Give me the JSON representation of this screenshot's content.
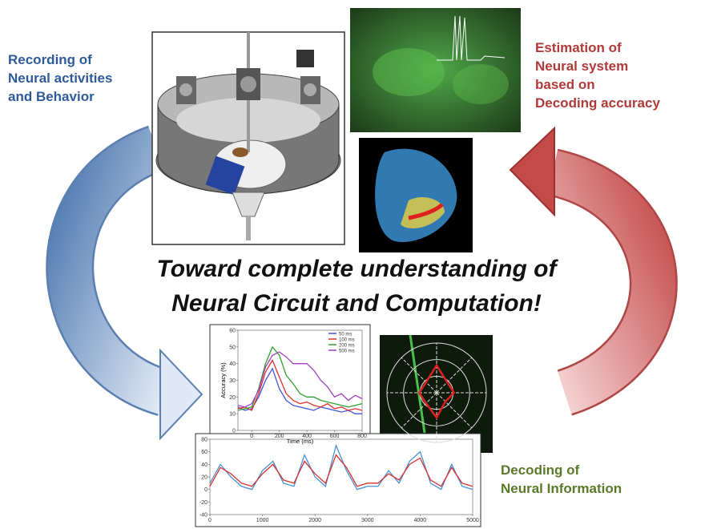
{
  "labels": {
    "recording": [
      "Recording of",
      "Neural activities",
      "and Behavior"
    ],
    "estimation": [
      "Estimation of",
      "Neural system",
      "based on",
      "Decoding accuracy"
    ],
    "headline": [
      "Toward complete understanding of",
      "Neural Circuit and Computation!"
    ],
    "decoding": [
      "Decoding of",
      "Neural Information"
    ]
  },
  "chart_data": [
    {
      "type": "line",
      "xlabel": "Time (ms)",
      "ylabel": "Accuracy (%)",
      "x": [
        -100,
        -50,
        0,
        50,
        100,
        150,
        200,
        250,
        300,
        350,
        400,
        450,
        500,
        550,
        600,
        650,
        700,
        750,
        800
      ],
      "series": [
        {
          "name": "50 ms",
          "color": "#4455dd",
          "values": [
            14,
            12,
            13,
            20,
            30,
            37,
            25,
            18,
            15,
            14,
            13,
            12,
            14,
            13,
            12,
            11,
            12,
            10,
            10
          ]
        },
        {
          "name": "100 ms",
          "color": "#e03030",
          "values": [
            13,
            14,
            12,
            22,
            35,
            42,
            32,
            22,
            18,
            16,
            17,
            15,
            14,
            16,
            13,
            14,
            12,
            13,
            12
          ]
        },
        {
          "name": "200 ms",
          "color": "#30a030",
          "values": [
            12,
            13,
            14,
            25,
            40,
            50,
            45,
            33,
            28,
            22,
            20,
            20,
            18,
            17,
            16,
            15,
            14,
            15,
            16
          ]
        },
        {
          "name": "500 ms",
          "color": "#a040c0",
          "values": [
            15,
            14,
            16,
            24,
            38,
            45,
            47,
            44,
            40,
            40,
            40,
            36,
            30,
            26,
            20,
            22,
            18,
            21,
            19
          ]
        }
      ],
      "xlim": [
        -100,
        800
      ],
      "ylim": [
        0,
        60
      ],
      "xticks": [
        0,
        200,
        400,
        600,
        800
      ],
      "yticks": [
        0,
        10,
        20,
        30,
        40,
        50,
        60
      ]
    },
    {
      "type": "line",
      "x": [
        0,
        200,
        400,
        600,
        800,
        1000,
        1200,
        1400,
        1600,
        1800,
        2000,
        2200,
        2400,
        2600,
        2800,
        3000,
        3200,
        3400,
        3600,
        3800,
        4000,
        4200,
        4400,
        4600,
        4800,
        5000
      ],
      "series": [
        {
          "color": "#4a90d9",
          "values": [
            10,
            40,
            20,
            5,
            0,
            30,
            45,
            10,
            5,
            55,
            20,
            5,
            70,
            30,
            0,
            5,
            5,
            30,
            10,
            45,
            60,
            10,
            0,
            40,
            5,
            0
          ]
        },
        {
          "color": "#d93030",
          "values": [
            5,
            35,
            25,
            10,
            5,
            25,
            40,
            15,
            10,
            45,
            25,
            10,
            55,
            35,
            5,
            10,
            10,
            25,
            15,
            40,
            50,
            15,
            5,
            35,
            10,
            5
          ]
        }
      ],
      "xlim": [
        0,
        5000
      ],
      "ylim": [
        -40,
        80
      ],
      "xticks": [
        0,
        1000,
        2000,
        3000,
        4000,
        5000
      ],
      "yticks": [
        -40,
        -20,
        0,
        20,
        40,
        60,
        80
      ]
    },
    {
      "type": "radar",
      "color": "#e02020",
      "values": [
        0.55,
        0.3,
        0.35,
        0.25,
        0.5,
        0.3,
        0.35,
        0.3
      ],
      "rlim": [
        0,
        1
      ]
    }
  ]
}
